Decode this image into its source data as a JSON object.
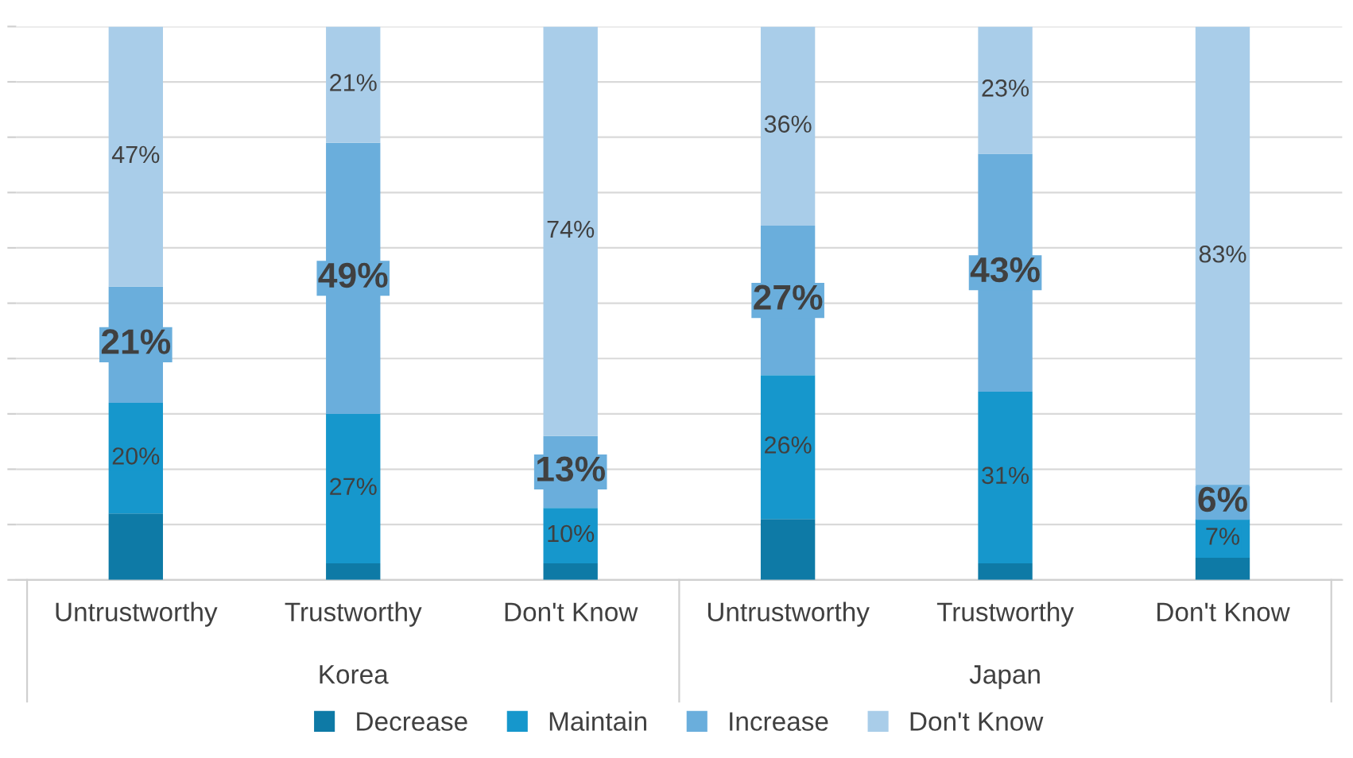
{
  "chart_data": {
    "type": "bar",
    "stacked": true,
    "categories": [
      "Untrustworthy",
      "Trustworthy",
      "Don't Know",
      "Untrustworthy",
      "Trustworthy",
      "Don't Know"
    ],
    "series": [
      {
        "name": "Decrease",
        "color": "#0e7aa6",
        "values": [
          12,
          3,
          3,
          11,
          3,
          4
        ],
        "value_labels": [
          null,
          null,
          null,
          null,
          null,
          null
        ]
      },
      {
        "name": "Maintain",
        "color": "#1697cc",
        "values": [
          20,
          27,
          10,
          26,
          31,
          7
        ],
        "value_labels": [
          "20%",
          "27%",
          "10%",
          "26%",
          "31%",
          "7%"
        ]
      },
      {
        "name": "Increase",
        "color": "#6aaedc",
        "values": [
          21,
          49,
          13,
          27,
          43,
          6
        ],
        "value_labels": [
          "21%",
          "49%",
          "13%",
          "27%",
          "43%",
          "6%"
        ]
      },
      {
        "name": "Don't Know",
        "color": "#a9cde9",
        "values": [
          47,
          21,
          74,
          36,
          23,
          83
        ],
        "value_labels": [
          "47%",
          "21%",
          "74%",
          "36%",
          "23%",
          "83%"
        ]
      }
    ],
    "annotations": [
      "Korea",
      "Japan"
    ],
    "ylim": [
      0,
      100
    ],
    "yticks": [
      {
        "value": 0,
        "label": null
      },
      {
        "value": 10,
        "label": null
      },
      {
        "value": 20,
        "label": null
      },
      {
        "value": 30,
        "label": null
      },
      {
        "value": 40,
        "label": null
      },
      {
        "value": 50,
        "label": null
      },
      {
        "value": 60,
        "label": null
      },
      {
        "value": 70,
        "label": null
      },
      {
        "value": 80,
        "label": null
      },
      {
        "value": 90,
        "label": null
      },
      {
        "value": 100,
        "label": null
      }
    ],
    "tick_labels": "x",
    "grid": "y",
    "legend": "bottom"
  }
}
